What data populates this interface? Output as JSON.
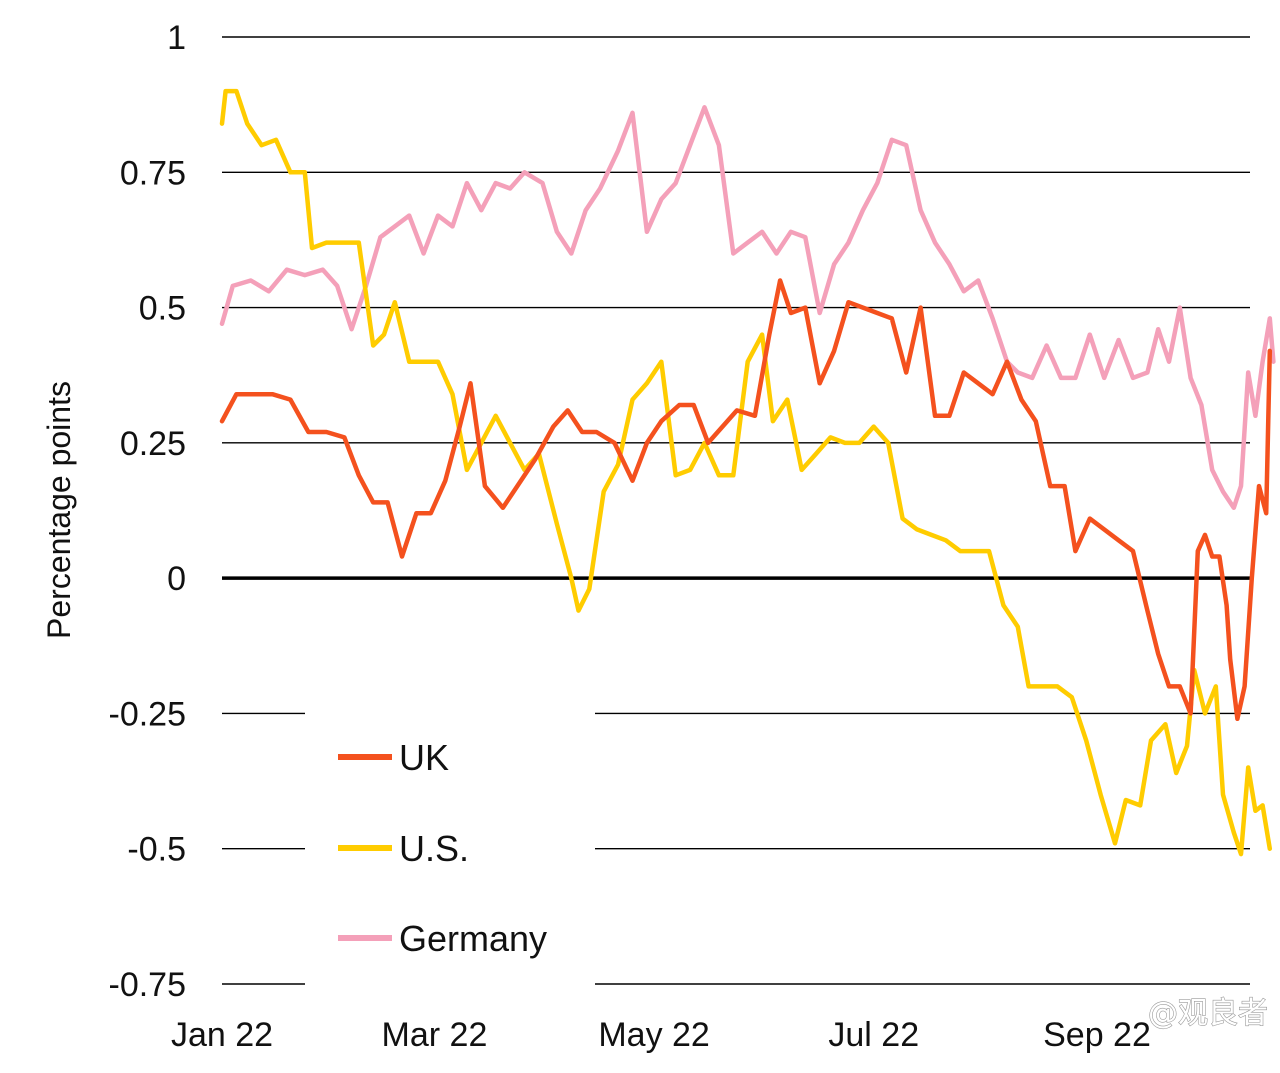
{
  "chart_data": {
    "type": "line",
    "ylabel": "Percentage points",
    "ylim": [
      -0.75,
      1
    ],
    "yticks": [
      1,
      0.75,
      0.5,
      0.25,
      0,
      -0.25,
      -0.5,
      -0.75
    ],
    "ytick_labels": [
      "1",
      "0.75",
      "0.5",
      "0.25",
      "0",
      "-0.25",
      "-0.5",
      "-0.75"
    ],
    "xlim": [
      "2022-01-01",
      "2022-10-15"
    ],
    "xticks": [
      "2022-01-01",
      "2022-03-01",
      "2022-05-01",
      "2022-07-01",
      "2022-09-01"
    ],
    "xtick_labels": [
      "Jan 22",
      "Mar 22",
      "May 22",
      "Jul 22",
      "Sep 22"
    ],
    "grid": "horizontal",
    "zero_line": true,
    "legend_position": "bottom-left",
    "series": [
      {
        "name": "UK",
        "color": "#F4511E",
        "points": [
          [
            "2022-01-01",
            0.29
          ],
          [
            "2022-01-05",
            0.34
          ],
          [
            "2022-01-10",
            0.34
          ],
          [
            "2022-01-15",
            0.34
          ],
          [
            "2022-01-20",
            0.33
          ],
          [
            "2022-01-25",
            0.27
          ],
          [
            "2022-01-30",
            0.27
          ],
          [
            "2022-02-04",
            0.26
          ],
          [
            "2022-02-08",
            0.19
          ],
          [
            "2022-02-12",
            0.14
          ],
          [
            "2022-02-16",
            0.14
          ],
          [
            "2022-02-20",
            0.04
          ],
          [
            "2022-02-24",
            0.12
          ],
          [
            "2022-02-28",
            0.12
          ],
          [
            "2022-03-04",
            0.18
          ],
          [
            "2022-03-08",
            0.28
          ],
          [
            "2022-03-11",
            0.36
          ],
          [
            "2022-03-15",
            0.17
          ],
          [
            "2022-03-20",
            0.13
          ],
          [
            "2022-03-24",
            0.17
          ],
          [
            "2022-03-29",
            0.22
          ],
          [
            "2022-04-03",
            0.28
          ],
          [
            "2022-04-07",
            0.31
          ],
          [
            "2022-04-11",
            0.27
          ],
          [
            "2022-04-15",
            0.27
          ],
          [
            "2022-04-20",
            0.25
          ],
          [
            "2022-04-25",
            0.18
          ],
          [
            "2022-04-29",
            0.25
          ],
          [
            "2022-05-03",
            0.29
          ],
          [
            "2022-05-08",
            0.32
          ],
          [
            "2022-05-12",
            0.32
          ],
          [
            "2022-05-16",
            0.25
          ],
          [
            "2022-05-20",
            0.28
          ],
          [
            "2022-05-24",
            0.31
          ],
          [
            "2022-05-29",
            0.3
          ],
          [
            "2022-06-02",
            0.45
          ],
          [
            "2022-06-05",
            0.55
          ],
          [
            "2022-06-08",
            0.49
          ],
          [
            "2022-06-12",
            0.5
          ],
          [
            "2022-06-16",
            0.36
          ],
          [
            "2022-06-20",
            0.42
          ],
          [
            "2022-06-24",
            0.51
          ],
          [
            "2022-06-28",
            0.5
          ],
          [
            "2022-07-02",
            0.49
          ],
          [
            "2022-07-06",
            0.48
          ],
          [
            "2022-07-10",
            0.38
          ],
          [
            "2022-07-14",
            0.5
          ],
          [
            "2022-07-18",
            0.3
          ],
          [
            "2022-07-22",
            0.3
          ],
          [
            "2022-07-26",
            0.38
          ],
          [
            "2022-07-30",
            0.36
          ],
          [
            "2022-08-03",
            0.34
          ],
          [
            "2022-08-07",
            0.4
          ],
          [
            "2022-08-11",
            0.33
          ],
          [
            "2022-08-15",
            0.29
          ],
          [
            "2022-08-19",
            0.17
          ],
          [
            "2022-08-23",
            0.17
          ],
          [
            "2022-08-26",
            0.05
          ],
          [
            "2022-08-30",
            0.11
          ],
          [
            "2022-09-03",
            0.09
          ],
          [
            "2022-09-07",
            0.07
          ],
          [
            "2022-09-11",
            0.05
          ],
          [
            "2022-09-15",
            -0.06
          ],
          [
            "2022-09-18",
            -0.14
          ],
          [
            "2022-09-21",
            -0.2
          ],
          [
            "2022-09-24",
            -0.2
          ],
          [
            "2022-09-27",
            -0.25
          ],
          [
            "2022-09-29",
            0.05
          ],
          [
            "2022-10-01",
            0.08
          ],
          [
            "2022-10-03",
            0.04
          ],
          [
            "2022-10-05",
            0.04
          ],
          [
            "2022-10-07",
            -0.05
          ],
          [
            "2022-10-08",
            -0.15
          ],
          [
            "2022-10-10",
            -0.26
          ],
          [
            "2022-10-12",
            -0.2
          ],
          [
            "2022-10-14",
            0.0
          ],
          [
            "2022-10-16",
            0.17
          ],
          [
            "2022-10-18",
            0.12
          ],
          [
            "2022-10-19",
            0.42
          ]
        ]
      },
      {
        "name": "U.S.",
        "color": "#FFCC00",
        "points": [
          [
            "2022-01-01",
            0.84
          ],
          [
            "2022-01-02",
            0.9
          ],
          [
            "2022-01-05",
            0.9
          ],
          [
            "2022-01-08",
            0.84
          ],
          [
            "2022-01-12",
            0.8
          ],
          [
            "2022-01-16",
            0.81
          ],
          [
            "2022-01-20",
            0.75
          ],
          [
            "2022-01-24",
            0.75
          ],
          [
            "2022-01-26",
            0.61
          ],
          [
            "2022-01-30",
            0.62
          ],
          [
            "2022-02-04",
            0.62
          ],
          [
            "2022-02-08",
            0.62
          ],
          [
            "2022-02-12",
            0.43
          ],
          [
            "2022-02-15",
            0.45
          ],
          [
            "2022-02-18",
            0.51
          ],
          [
            "2022-02-22",
            0.4
          ],
          [
            "2022-02-26",
            0.4
          ],
          [
            "2022-03-02",
            0.4
          ],
          [
            "2022-03-06",
            0.34
          ],
          [
            "2022-03-10",
            0.2
          ],
          [
            "2022-03-14",
            0.25
          ],
          [
            "2022-03-18",
            0.3
          ],
          [
            "2022-03-22",
            0.25
          ],
          [
            "2022-03-26",
            0.2
          ],
          [
            "2022-03-30",
            0.23
          ],
          [
            "2022-04-04",
            0.1
          ],
          [
            "2022-04-08",
            0.0
          ],
          [
            "2022-04-10",
            -0.06
          ],
          [
            "2022-04-13",
            -0.02
          ],
          [
            "2022-04-17",
            0.16
          ],
          [
            "2022-04-21",
            0.21
          ],
          [
            "2022-04-25",
            0.33
          ],
          [
            "2022-04-29",
            0.36
          ],
          [
            "2022-05-03",
            0.4
          ],
          [
            "2022-05-07",
            0.19
          ],
          [
            "2022-05-11",
            0.2
          ],
          [
            "2022-05-15",
            0.25
          ],
          [
            "2022-05-19",
            0.19
          ],
          [
            "2022-05-23",
            0.19
          ],
          [
            "2022-05-27",
            0.4
          ],
          [
            "2022-05-31",
            0.45
          ],
          [
            "2022-06-03",
            0.29
          ],
          [
            "2022-06-07",
            0.33
          ],
          [
            "2022-06-11",
            0.2
          ],
          [
            "2022-06-15",
            0.23
          ],
          [
            "2022-06-19",
            0.26
          ],
          [
            "2022-06-23",
            0.25
          ],
          [
            "2022-06-27",
            0.25
          ],
          [
            "2022-07-01",
            0.28
          ],
          [
            "2022-07-05",
            0.25
          ],
          [
            "2022-07-09",
            0.11
          ],
          [
            "2022-07-13",
            0.09
          ],
          [
            "2022-07-17",
            0.08
          ],
          [
            "2022-07-21",
            0.07
          ],
          [
            "2022-07-25",
            0.05
          ],
          [
            "2022-07-29",
            0.05
          ],
          [
            "2022-08-02",
            0.05
          ],
          [
            "2022-08-06",
            -0.05
          ],
          [
            "2022-08-10",
            -0.09
          ],
          [
            "2022-08-13",
            -0.2
          ],
          [
            "2022-08-17",
            -0.2
          ],
          [
            "2022-08-21",
            -0.2
          ],
          [
            "2022-08-25",
            -0.22
          ],
          [
            "2022-08-29",
            -0.3
          ],
          [
            "2022-09-02",
            -0.4
          ],
          [
            "2022-09-06",
            -0.49
          ],
          [
            "2022-09-09",
            -0.41
          ],
          [
            "2022-09-13",
            -0.42
          ],
          [
            "2022-09-16",
            -0.3
          ],
          [
            "2022-09-20",
            -0.27
          ],
          [
            "2022-09-23",
            -0.36
          ],
          [
            "2022-09-26",
            -0.31
          ],
          [
            "2022-09-28",
            -0.17
          ],
          [
            "2022-10-01",
            -0.25
          ],
          [
            "2022-10-04",
            -0.2
          ],
          [
            "2022-10-06",
            -0.4
          ],
          [
            "2022-10-09",
            -0.47
          ],
          [
            "2022-10-11",
            -0.51
          ],
          [
            "2022-10-13",
            -0.35
          ],
          [
            "2022-10-15",
            -0.43
          ],
          [
            "2022-10-17",
            -0.42
          ],
          [
            "2022-10-19",
            -0.5
          ]
        ]
      },
      {
        "name": "Germany",
        "color": "#F4A0B9",
        "points": [
          [
            "2022-01-01",
            0.47
          ],
          [
            "2022-01-04",
            0.54
          ],
          [
            "2022-01-09",
            0.55
          ],
          [
            "2022-01-14",
            0.53
          ],
          [
            "2022-01-19",
            0.57
          ],
          [
            "2022-01-24",
            0.56
          ],
          [
            "2022-01-29",
            0.57
          ],
          [
            "2022-02-02",
            0.54
          ],
          [
            "2022-02-06",
            0.46
          ],
          [
            "2022-02-10",
            0.54
          ],
          [
            "2022-02-14",
            0.63
          ],
          [
            "2022-02-18",
            0.65
          ],
          [
            "2022-02-22",
            0.67
          ],
          [
            "2022-02-26",
            0.6
          ],
          [
            "2022-03-02",
            0.67
          ],
          [
            "2022-03-06",
            0.65
          ],
          [
            "2022-03-10",
            0.73
          ],
          [
            "2022-03-14",
            0.68
          ],
          [
            "2022-03-18",
            0.73
          ],
          [
            "2022-03-22",
            0.72
          ],
          [
            "2022-03-26",
            0.75
          ],
          [
            "2022-03-31",
            0.73
          ],
          [
            "2022-04-04",
            0.64
          ],
          [
            "2022-04-08",
            0.6
          ],
          [
            "2022-04-12",
            0.68
          ],
          [
            "2022-04-16",
            0.72
          ],
          [
            "2022-04-21",
            0.79
          ],
          [
            "2022-04-25",
            0.86
          ],
          [
            "2022-04-29",
            0.64
          ],
          [
            "2022-05-03",
            0.7
          ],
          [
            "2022-05-07",
            0.73
          ],
          [
            "2022-05-11",
            0.8
          ],
          [
            "2022-05-15",
            0.87
          ],
          [
            "2022-05-19",
            0.8
          ],
          [
            "2022-05-23",
            0.6
          ],
          [
            "2022-05-27",
            0.62
          ],
          [
            "2022-05-31",
            0.64
          ],
          [
            "2022-06-04",
            0.6
          ],
          [
            "2022-06-08",
            0.64
          ],
          [
            "2022-06-12",
            0.63
          ],
          [
            "2022-06-16",
            0.49
          ],
          [
            "2022-06-20",
            0.58
          ],
          [
            "2022-06-24",
            0.62
          ],
          [
            "2022-06-28",
            0.68
          ],
          [
            "2022-07-02",
            0.73
          ],
          [
            "2022-07-06",
            0.81
          ],
          [
            "2022-07-10",
            0.8
          ],
          [
            "2022-07-14",
            0.68
          ],
          [
            "2022-07-18",
            0.62
          ],
          [
            "2022-07-22",
            0.58
          ],
          [
            "2022-07-26",
            0.53
          ],
          [
            "2022-07-30",
            0.55
          ],
          [
            "2022-08-03",
            0.48
          ],
          [
            "2022-08-07",
            0.4
          ],
          [
            "2022-08-10",
            0.38
          ],
          [
            "2022-08-14",
            0.37
          ],
          [
            "2022-08-18",
            0.43
          ],
          [
            "2022-08-22",
            0.37
          ],
          [
            "2022-08-26",
            0.37
          ],
          [
            "2022-08-30",
            0.45
          ],
          [
            "2022-09-03",
            0.37
          ],
          [
            "2022-09-07",
            0.44
          ],
          [
            "2022-09-11",
            0.37
          ],
          [
            "2022-09-15",
            0.38
          ],
          [
            "2022-09-18",
            0.46
          ],
          [
            "2022-09-21",
            0.4
          ],
          [
            "2022-09-24",
            0.5
          ],
          [
            "2022-09-27",
            0.37
          ],
          [
            "2022-09-30",
            0.32
          ],
          [
            "2022-10-03",
            0.2
          ],
          [
            "2022-10-06",
            0.16
          ],
          [
            "2022-10-09",
            0.13
          ],
          [
            "2022-10-11",
            0.17
          ],
          [
            "2022-10-13",
            0.38
          ],
          [
            "2022-10-15",
            0.3
          ],
          [
            "2022-10-17",
            0.4
          ],
          [
            "2022-10-19",
            0.48
          ],
          [
            "2022-10-20",
            0.4
          ]
        ]
      }
    ]
  },
  "watermark": {
    "text": "@观良者"
  }
}
